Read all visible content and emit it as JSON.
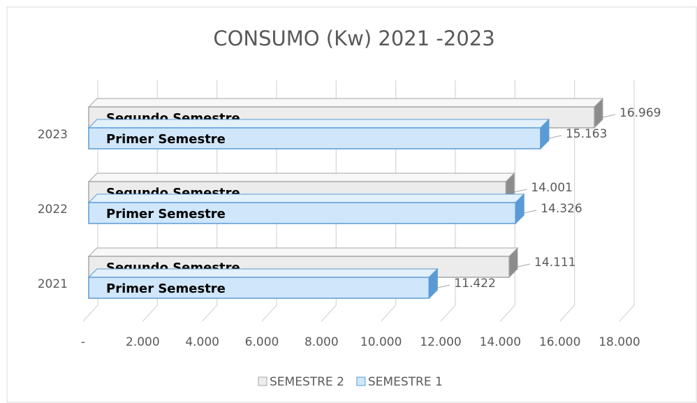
{
  "chart_data": {
    "type": "bar3d_horizontal",
    "title": "CONSUMO (Kw) 2021 -2023",
    "categories": [
      "2021",
      "2022",
      "2023"
    ],
    "series": [
      {
        "name": "SEMESTRE 2",
        "bar_label": "Segundo Semestre",
        "color": "#ececec",
        "values": [
          14111,
          14001,
          16969
        ],
        "value_labels": [
          "14.111",
          "14.001",
          "16.969"
        ]
      },
      {
        "name": "SEMESTRE 1",
        "bar_label": "Primer Semestre",
        "color": "#cfe6fb",
        "values": [
          11422,
          14326,
          15163
        ],
        "value_labels": [
          "11.422",
          "14.326",
          "15.163"
        ]
      }
    ],
    "xlim": [
      0,
      18000
    ],
    "xticks": [
      {
        "value": 0,
        "label": "-"
      },
      {
        "value": 2000,
        "label": "2.000"
      },
      {
        "value": 4000,
        "label": "4.000"
      },
      {
        "value": 6000,
        "label": "6.000"
      },
      {
        "value": 8000,
        "label": "8.000"
      },
      {
        "value": 10000,
        "label": "10.000"
      },
      {
        "value": 12000,
        "label": "12.000"
      },
      {
        "value": 14000,
        "label": "14.000"
      },
      {
        "value": 16000,
        "label": "16.000"
      },
      {
        "value": 18000,
        "label": "18.000"
      }
    ],
    "grid": true,
    "legend": "bottom"
  }
}
